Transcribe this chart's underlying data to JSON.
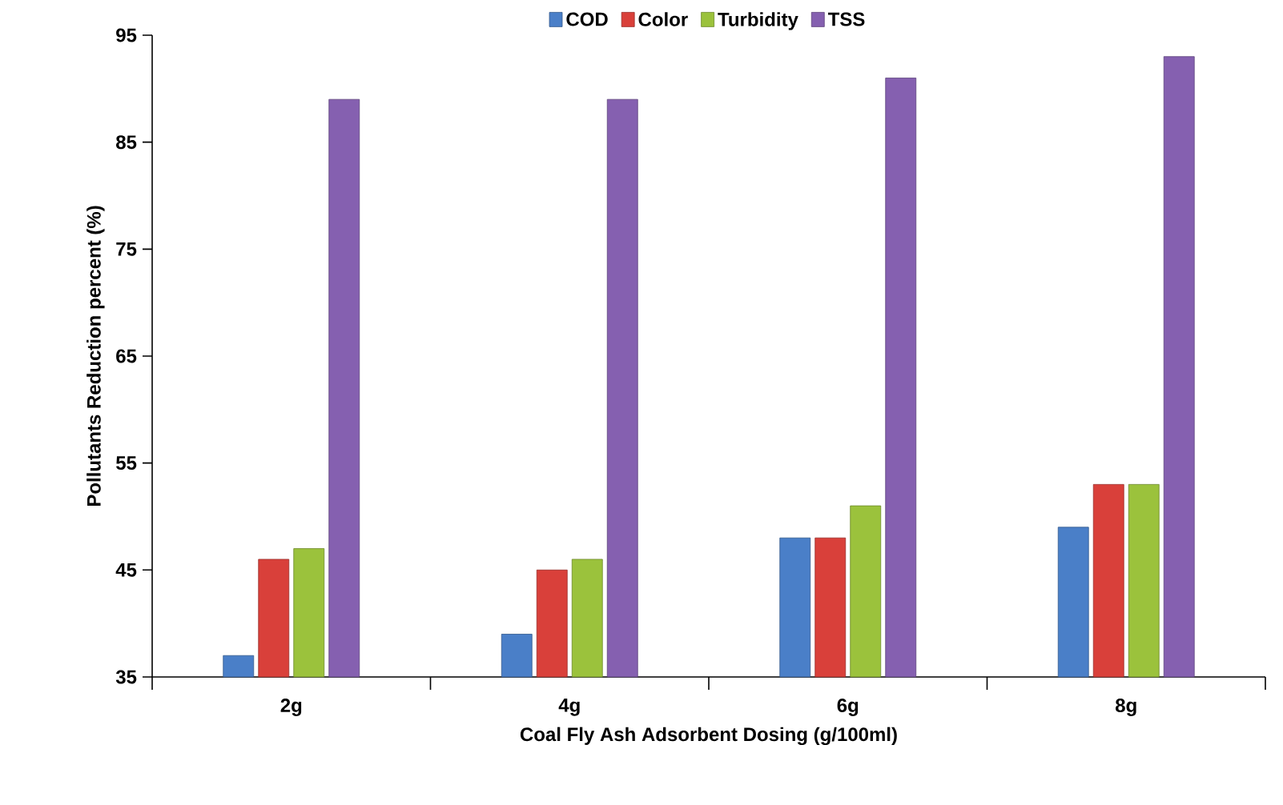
{
  "chart_data": {
    "type": "bar",
    "xlabel": "Coal Fly Ash Adsorbent Dosing (g/100ml)",
    "ylabel": "Pollutants  Reduction percent (%)",
    "categories": [
      "2g",
      "4g",
      "6g",
      "8g"
    ],
    "series": [
      {
        "name": "COD",
        "color": "#4a7fc8",
        "values": [
          37,
          39,
          48,
          49
        ]
      },
      {
        "name": "Color",
        "color": "#d9403a",
        "values": [
          46,
          45,
          48,
          53
        ]
      },
      {
        "name": "Turbidity",
        "color": "#9bc23c",
        "values": [
          47,
          46,
          51,
          53
        ]
      },
      {
        "name": "TSS",
        "color": "#8560b0",
        "values": [
          89,
          89,
          91,
          93
        ]
      }
    ],
    "ylim": [
      35,
      95
    ],
    "yticks": [
      35,
      45,
      55,
      65,
      75,
      85,
      95
    ],
    "legend": "top"
  }
}
